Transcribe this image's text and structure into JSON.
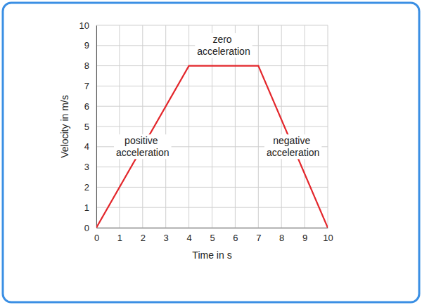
{
  "chart_data": {
    "type": "line",
    "x_label": "Time in s",
    "y_label": "Velocity in m/s",
    "x": [
      0,
      4,
      7,
      10
    ],
    "values": [
      0,
      8,
      8,
      0
    ],
    "color": "#e3262b",
    "xlim": [
      0,
      10
    ],
    "ylim": [
      0,
      10
    ],
    "xticks": [
      0,
      1,
      2,
      3,
      4,
      5,
      6,
      7,
      8,
      9,
      10
    ],
    "yticks": [
      0,
      1,
      2,
      3,
      4,
      5,
      6,
      7,
      8,
      9,
      10
    ],
    "grid": true,
    "annotations": [
      "positive acceleration",
      "zero acceleration",
      "negative acceleration"
    ]
  }
}
